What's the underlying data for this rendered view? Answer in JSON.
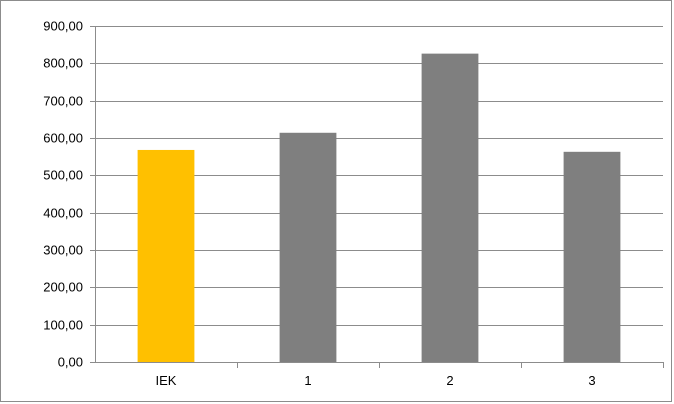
{
  "chart_data": {
    "type": "bar",
    "categories": [
      "IEK",
      "1",
      "2",
      "3"
    ],
    "values": [
      568,
      614,
      826,
      563
    ],
    "bar_colors": [
      "#FFC000",
      "#7F7F7F",
      "#7F7F7F",
      "#7F7F7F"
    ],
    "title": "",
    "xlabel": "",
    "ylabel": "",
    "ylim": [
      0,
      900
    ],
    "y_tick_step": 100,
    "y_tick_labels": [
      "0,00",
      "100,00",
      "200,00",
      "300,00",
      "400,00",
      "500,00",
      "600,00",
      "700,00",
      "800,00",
      "900,00"
    ],
    "grid": true,
    "legend": "none",
    "gridline_color": "#8C8C8C"
  }
}
